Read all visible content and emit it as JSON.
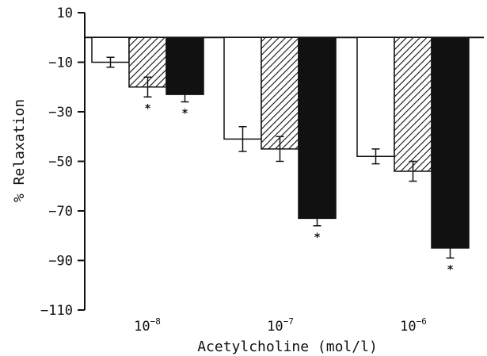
{
  "chart_data": {
    "type": "bar",
    "xlabel": "Acetylcholine (mol/l)",
    "ylabel": "% Relaxation",
    "ylim": [
      -110,
      10
    ],
    "yticks": [
      "10",
      "-10",
      "-30",
      "-50",
      "-70",
      "-90",
      "-110"
    ],
    "grid": false,
    "categories": [
      {
        "base": "10",
        "exp": "-8"
      },
      {
        "base": "10",
        "exp": "-7"
      },
      {
        "base": "10",
        "exp": "-6"
      }
    ],
    "series": [
      {
        "fill": "white",
        "values": [
          -10,
          -41,
          -48
        ],
        "errors": [
          2,
          5,
          3
        ],
        "significant": [
          false,
          false,
          false
        ]
      },
      {
        "fill": "hatched",
        "values": [
          -20,
          -45,
          -54
        ],
        "errors": [
          4,
          5,
          4
        ],
        "significant": [
          true,
          false,
          false
        ]
      },
      {
        "fill": "black",
        "values": [
          -23,
          -73,
          -85
        ],
        "errors": [
          3,
          3,
          4
        ],
        "significant": [
          true,
          true,
          true
        ]
      }
    ],
    "significance_marker": "*"
  }
}
